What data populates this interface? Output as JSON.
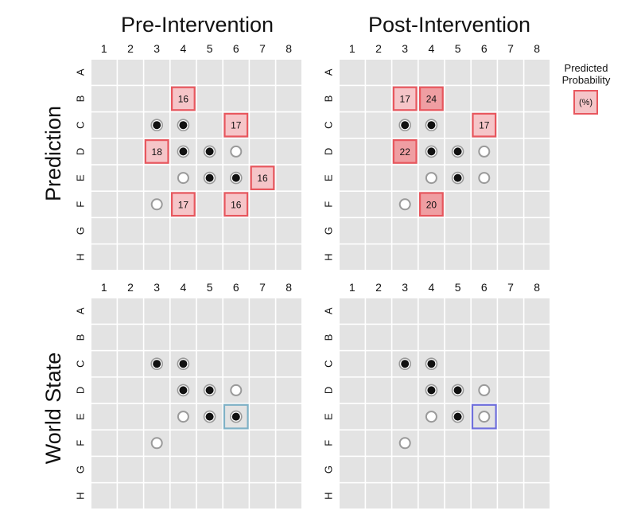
{
  "columns": [
    "Pre-Intervention",
    "Post-Intervention"
  ],
  "rows": [
    "Prediction",
    "World State"
  ],
  "col_labels": [
    "1",
    "2",
    "3",
    "4",
    "5",
    "6",
    "7",
    "8"
  ],
  "row_labels": [
    "A",
    "B",
    "C",
    "D",
    "E",
    "F",
    "G",
    "H"
  ],
  "legend": {
    "title_line1": "Predicted",
    "title_line2": "Probability",
    "unit": "(%)"
  },
  "colors": {
    "cell": "#e3e3e3",
    "prob_fill_light": "#f5c5c8",
    "prob_fill_dark": "#ef9ea2",
    "prob_stroke": "#e8575e",
    "highlight_pre": "#7fb1c6",
    "highlight_post": "#6f6fdc",
    "black_disc": "#111111",
    "white_disc": "#ffffff",
    "disc_ring": "#9a9a9a"
  },
  "boards": [
    {
      "id": "prediction-pre",
      "pieces": [
        {
          "row": "C",
          "col": 3,
          "type": "black"
        },
        {
          "row": "C",
          "col": 4,
          "type": "black"
        },
        {
          "row": "D",
          "col": 4,
          "type": "black"
        },
        {
          "row": "D",
          "col": 5,
          "type": "black"
        },
        {
          "row": "D",
          "col": 6,
          "type": "white"
        },
        {
          "row": "E",
          "col": 4,
          "type": "white"
        },
        {
          "row": "E",
          "col": 5,
          "type": "black"
        },
        {
          "row": "E",
          "col": 6,
          "type": "black"
        },
        {
          "row": "F",
          "col": 3,
          "type": "white"
        }
      ],
      "probs": [
        {
          "row": "B",
          "col": 4,
          "value": "16",
          "strong": false
        },
        {
          "row": "C",
          "col": 6,
          "value": "17",
          "strong": false
        },
        {
          "row": "D",
          "col": 3,
          "value": "18",
          "strong": false
        },
        {
          "row": "E",
          "col": 7,
          "value": "16",
          "strong": false
        },
        {
          "row": "F",
          "col": 4,
          "value": "17",
          "strong": false
        },
        {
          "row": "F",
          "col": 6,
          "value": "16",
          "strong": false
        }
      ],
      "highlight": null
    },
    {
      "id": "prediction-post",
      "pieces": [
        {
          "row": "C",
          "col": 3,
          "type": "black"
        },
        {
          "row": "C",
          "col": 4,
          "type": "black"
        },
        {
          "row": "D",
          "col": 4,
          "type": "black"
        },
        {
          "row": "D",
          "col": 5,
          "type": "black"
        },
        {
          "row": "D",
          "col": 6,
          "type": "white"
        },
        {
          "row": "E",
          "col": 4,
          "type": "white"
        },
        {
          "row": "E",
          "col": 5,
          "type": "black"
        },
        {
          "row": "E",
          "col": 6,
          "type": "white"
        },
        {
          "row": "F",
          "col": 3,
          "type": "white"
        }
      ],
      "probs": [
        {
          "row": "B",
          "col": 3,
          "value": "17",
          "strong": false
        },
        {
          "row": "B",
          "col": 4,
          "value": "24",
          "strong": true
        },
        {
          "row": "C",
          "col": 6,
          "value": "17",
          "strong": false
        },
        {
          "row": "D",
          "col": 3,
          "value": "22",
          "strong": true
        },
        {
          "row": "F",
          "col": 4,
          "value": "20",
          "strong": true
        }
      ],
      "highlight": null
    },
    {
      "id": "world-pre",
      "pieces": [
        {
          "row": "C",
          "col": 3,
          "type": "black"
        },
        {
          "row": "C",
          "col": 4,
          "type": "black"
        },
        {
          "row": "D",
          "col": 4,
          "type": "black"
        },
        {
          "row": "D",
          "col": 5,
          "type": "black"
        },
        {
          "row": "D",
          "col": 6,
          "type": "white"
        },
        {
          "row": "E",
          "col": 4,
          "type": "white"
        },
        {
          "row": "E",
          "col": 5,
          "type": "black"
        },
        {
          "row": "E",
          "col": 6,
          "type": "black"
        },
        {
          "row": "F",
          "col": 3,
          "type": "white"
        }
      ],
      "probs": [],
      "highlight": {
        "row": "E",
        "col": 6,
        "color": "highlight_pre"
      }
    },
    {
      "id": "world-post",
      "pieces": [
        {
          "row": "C",
          "col": 3,
          "type": "black"
        },
        {
          "row": "C",
          "col": 4,
          "type": "black"
        },
        {
          "row": "D",
          "col": 4,
          "type": "black"
        },
        {
          "row": "D",
          "col": 5,
          "type": "black"
        },
        {
          "row": "D",
          "col": 6,
          "type": "white"
        },
        {
          "row": "E",
          "col": 4,
          "type": "white"
        },
        {
          "row": "E",
          "col": 5,
          "type": "black"
        },
        {
          "row": "E",
          "col": 6,
          "type": "white"
        },
        {
          "row": "F",
          "col": 3,
          "type": "white"
        }
      ],
      "probs": [],
      "highlight": {
        "row": "E",
        "col": 6,
        "color": "highlight_post"
      }
    }
  ]
}
